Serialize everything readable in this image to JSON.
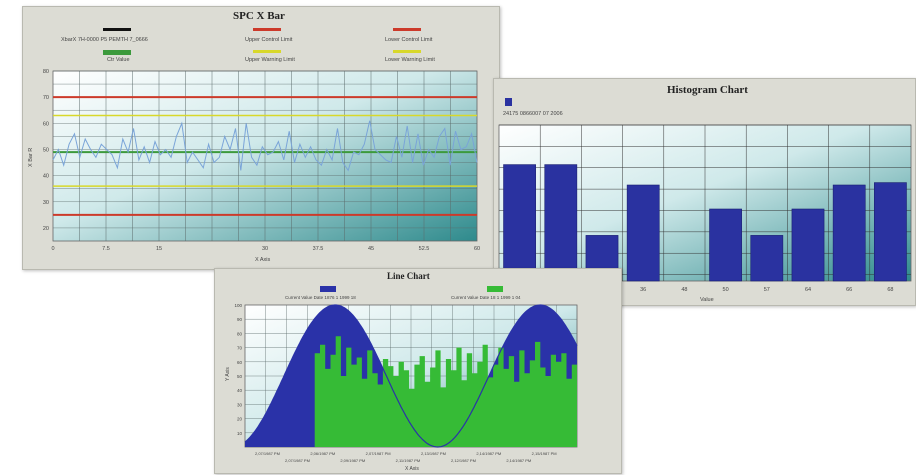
{
  "charts": {
    "spc": {
      "title": "SPC X Bar",
      "legend": {
        "sample": "XbarX 7H-0000 P5 PEMTH 7_0666",
        "upper_control": "Upper Control Limit",
        "lower_control": "Lower Control Limit",
        "center": "Ctr Value",
        "upper_warning": "Upper Warning Limit",
        "lower_warning": "Lower Warning Limit"
      },
      "ylabel": "X Bar R",
      "xlabel": "X Axis",
      "yticks": [
        "10",
        "20",
        "30",
        "40",
        "50",
        "60",
        "70",
        "80"
      ],
      "xticks": [
        "0",
        "7.5",
        "15",
        "",
        "30",
        "37.5",
        "45",
        "52.5",
        "60"
      ],
      "colors": {
        "upper_control": "#cc3a2a",
        "center": "#3c9a3c",
        "warning": "#d8d82a",
        "series": "#7aa4d8",
        "line_red": "#cc3a2a"
      }
    },
    "histogram": {
      "title": "Histogram Chart",
      "legend_text": "24175 0866007 07 2006",
      "xlabel": "Value",
      "xticks": [
        "",
        "",
        "",
        "36",
        "48",
        "50",
        "57",
        "64",
        "66",
        "68"
      ],
      "bar_color": "#2a32a0"
    },
    "line": {
      "title": "Line Chart",
      "legend_a": "Current Value Date 1876 1 1999 18",
      "legend_b": "Current Value Date 18 1 1999 1 04",
      "ylabel": "Y Axis",
      "xlabel": "X Axis",
      "yticks": [
        "10",
        "20",
        "30",
        "40",
        "50",
        "60",
        "70",
        "80",
        "90",
        "100"
      ],
      "xticks_top": [
        "2,07/1987 PM",
        "2,06/1987 PM",
        "2,07/1987 PM",
        "2,13/1987 PM",
        "2,14/1987 PM",
        "2,15/1987 PM"
      ],
      "xticks_bottom": [
        "2,07/1987 PM",
        "2,09/1987 PM",
        "2,11/1987 PM",
        "2,12/1987 PM",
        "2,14/1987 PM"
      ],
      "colors": {
        "blue": "#2a32a8",
        "green": "#36bb36"
      }
    }
  },
  "chart_data": [
    {
      "type": "line",
      "title": "SPC X Bar",
      "xlabel": "X Axis",
      "ylabel": "X Bar R",
      "ylim": [
        15,
        80
      ],
      "xlim": [
        0,
        60
      ],
      "control_limits": {
        "upper_control": 70,
        "upper_warning": 63,
        "center": 49,
        "lower_warning": 36,
        "lower_control": 25
      },
      "series": [
        {
          "name": "XbarX 7H-0000 P5 PEMTH 7_0666",
          "values": [
            46,
            50,
            44,
            52,
            56,
            47,
            54,
            50,
            47,
            52,
            50,
            48,
            43,
            54,
            49,
            58,
            46,
            51,
            45,
            53,
            48,
            50,
            47,
            55,
            60,
            45,
            49,
            46,
            43,
            52,
            45,
            47,
            55,
            50,
            58,
            42,
            60,
            47,
            44,
            51,
            48,
            49,
            53,
            46,
            57,
            45,
            52,
            47,
            51,
            46,
            44,
            50,
            46,
            58,
            45,
            42,
            49,
            48,
            52,
            61,
            50,
            48,
            46,
            45,
            55,
            47,
            59,
            45,
            56,
            44,
            50,
            47,
            55,
            58,
            44,
            57,
            50,
            51,
            56,
            45
          ]
        }
      ]
    },
    {
      "type": "bar",
      "title": "Histogram Chart",
      "xlabel": "Value",
      "values": [
        97,
        97,
        38,
        80,
        0,
        60,
        38,
        60,
        80,
        82
      ],
      "ylim": [
        0,
        130
      ]
    },
    {
      "type": "area",
      "title": "Line Chart",
      "xlabel": "X Axis",
      "ylabel": "Y Axis",
      "ylim": [
        0,
        100
      ],
      "series": [
        {
          "name": "Current Value Date 1876 1 1999 18",
          "shape": "sine",
          "peak": 100,
          "min": 0
        },
        {
          "name": "Current Value Date 18 1 1999 1 04",
          "values": [
            66,
            72,
            55,
            65,
            78,
            50,
            70,
            58,
            63,
            48,
            68,
            52,
            44,
            62,
            57,
            50,
            60,
            54,
            41,
            58,
            64,
            46,
            56,
            68,
            42,
            62,
            54,
            70,
            47,
            66,
            52,
            60,
            72,
            49,
            58,
            70,
            55,
            64,
            46,
            68,
            52,
            61,
            74,
            56,
            50,
            65,
            60,
            66,
            48,
            58
          ]
        }
      ]
    }
  ]
}
